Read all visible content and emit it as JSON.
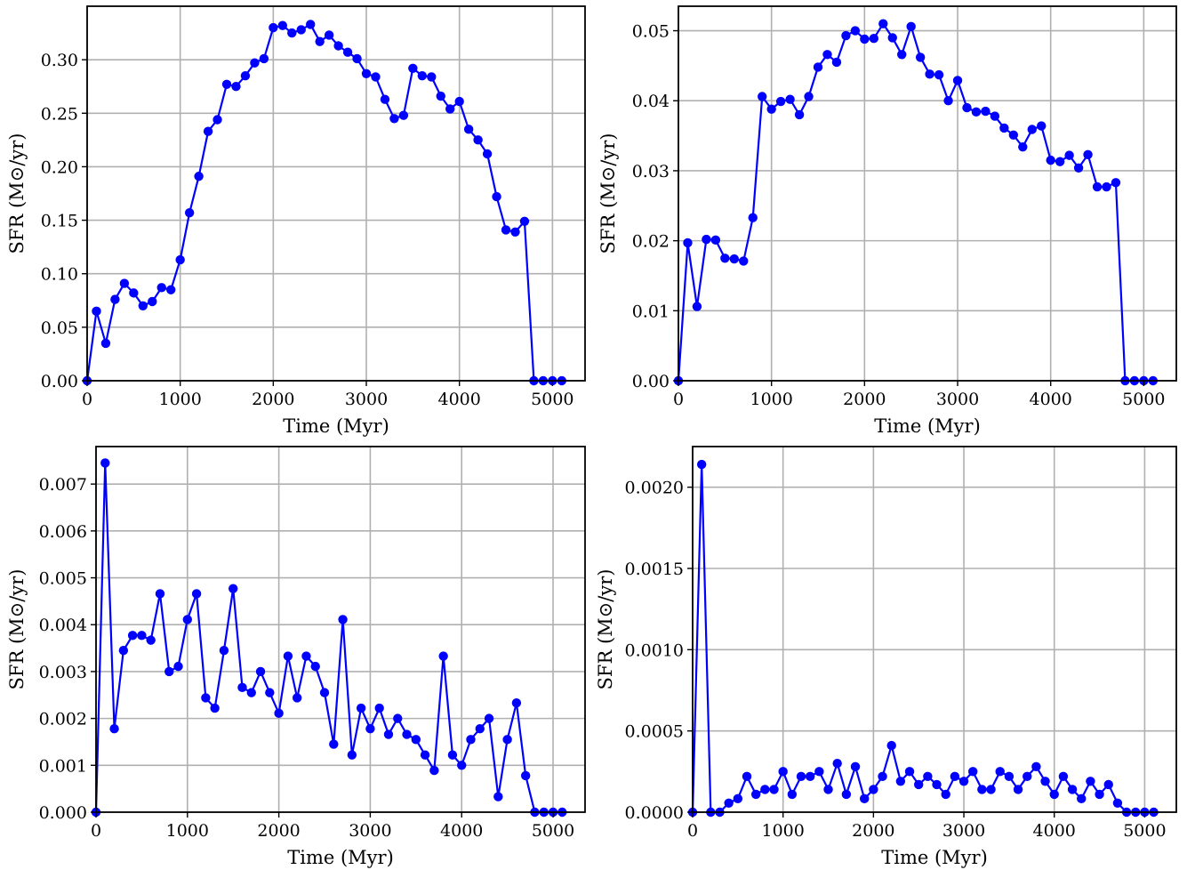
{
  "figure": {
    "background": "#ffffff",
    "series_color": "#0000ff",
    "grid_color": "#b0b0b0"
  },
  "chart_data": [
    {
      "type": "line",
      "panel": "top-left",
      "xlabel": "Time (Myr)",
      "ylabel": "SFR (M⊙/yr)",
      "xlim": [
        0,
        5350
      ],
      "ylim": [
        0,
        0.35
      ],
      "xticks": [
        0,
        1000,
        2000,
        3000,
        4000,
        5000
      ],
      "xtick_labels": [
        "0",
        "1000",
        "2000",
        "3000",
        "4000",
        "5000"
      ],
      "yticks": [
        0,
        0.05,
        0.1,
        0.15,
        0.2,
        0.25,
        0.3
      ],
      "ytick_labels": [
        "0.00",
        "0.05",
        "0.10",
        "0.15",
        "0.20",
        "0.25",
        "0.30"
      ],
      "grid": true,
      "marker": "circle",
      "x": [
        0,
        100,
        200,
        300,
        400,
        500,
        600,
        700,
        800,
        900,
        1000,
        1100,
        1200,
        1300,
        1400,
        1500,
        1600,
        1700,
        1800,
        1900,
        2000,
        2100,
        2200,
        2300,
        2400,
        2500,
        2600,
        2700,
        2800,
        2900,
        3000,
        3100,
        3200,
        3300,
        3400,
        3500,
        3600,
        3700,
        3800,
        3900,
        4000,
        4100,
        4200,
        4300,
        4400,
        4500,
        4600,
        4700,
        4800,
        4900,
        5000,
        5100
      ],
      "y": [
        0.0,
        0.065,
        0.035,
        0.076,
        0.091,
        0.082,
        0.07,
        0.074,
        0.087,
        0.085,
        0.113,
        0.157,
        0.191,
        0.233,
        0.244,
        0.277,
        0.275,
        0.285,
        0.297,
        0.301,
        0.33,
        0.332,
        0.325,
        0.328,
        0.333,
        0.317,
        0.323,
        0.313,
        0.307,
        0.301,
        0.287,
        0.284,
        0.263,
        0.245,
        0.248,
        0.292,
        0.285,
        0.284,
        0.266,
        0.254,
        0.261,
        0.235,
        0.225,
        0.212,
        0.172,
        0.141,
        0.139,
        0.149,
        0.0,
        0.0,
        0.0,
        0.0
      ]
    },
    {
      "type": "line",
      "panel": "top-right",
      "xlabel": "Time (Myr)",
      "ylabel": "SFR (M⊙/yr)",
      "xlim": [
        0,
        5350
      ],
      "ylim": [
        0,
        0.0535
      ],
      "xticks": [
        0,
        1000,
        2000,
        3000,
        4000,
        5000
      ],
      "xtick_labels": [
        "0",
        "1000",
        "2000",
        "3000",
        "4000",
        "5000"
      ],
      "yticks": [
        0,
        0.01,
        0.02,
        0.03,
        0.04,
        0.05
      ],
      "ytick_labels": [
        "0.00",
        "0.01",
        "0.02",
        "0.03",
        "0.04",
        "0.05"
      ],
      "grid": true,
      "marker": "circle",
      "x": [
        0,
        100,
        200,
        300,
        400,
        500,
        600,
        700,
        800,
        900,
        1000,
        1100,
        1200,
        1300,
        1400,
        1500,
        1600,
        1700,
        1800,
        1900,
        2000,
        2100,
        2200,
        2300,
        2400,
        2500,
        2600,
        2700,
        2800,
        2900,
        3000,
        3100,
        3200,
        3300,
        3400,
        3500,
        3600,
        3700,
        3800,
        3900,
        4000,
        4100,
        4200,
        4300,
        4400,
        4500,
        4600,
        4700,
        4800,
        4900,
        5000,
        5100
      ],
      "y": [
        0.0,
        0.0197,
        0.0106,
        0.0202,
        0.0201,
        0.0175,
        0.0174,
        0.0171,
        0.0233,
        0.0406,
        0.0388,
        0.0399,
        0.0402,
        0.038,
        0.0406,
        0.0448,
        0.0466,
        0.0455,
        0.0493,
        0.05,
        0.0488,
        0.0489,
        0.051,
        0.049,
        0.0466,
        0.0506,
        0.0462,
        0.0438,
        0.0437,
        0.04,
        0.0429,
        0.039,
        0.0384,
        0.0385,
        0.0378,
        0.0361,
        0.0351,
        0.0334,
        0.0359,
        0.0364,
        0.0315,
        0.0313,
        0.0322,
        0.0304,
        0.0323,
        0.0277,
        0.0277,
        0.0283,
        0.0,
        0.0,
        0.0,
        0.0
      ]
    },
    {
      "type": "line",
      "panel": "bottom-left",
      "xlabel": "Time (Myr)",
      "ylabel": "SFR (M⊙/yr)",
      "xlim": [
        0,
        5350
      ],
      "ylim": [
        0,
        0.0078
      ],
      "xticks": [
        0,
        1000,
        2000,
        3000,
        4000,
        5000
      ],
      "xtick_labels": [
        "0",
        "1000",
        "2000",
        "3000",
        "4000",
        "5000"
      ],
      "yticks": [
        0,
        0.001,
        0.002,
        0.003,
        0.004,
        0.005,
        0.006,
        0.007
      ],
      "ytick_labels": [
        "0.000",
        "0.001",
        "0.002",
        "0.003",
        "0.004",
        "0.005",
        "0.006",
        "0.007"
      ],
      "grid": true,
      "marker": "circle",
      "x": [
        0,
        100,
        200,
        300,
        400,
        500,
        600,
        700,
        800,
        900,
        1000,
        1100,
        1200,
        1300,
        1400,
        1500,
        1600,
        1700,
        1800,
        1900,
        2000,
        2100,
        2200,
        2300,
        2400,
        2500,
        2600,
        2700,
        2800,
        2900,
        3000,
        3100,
        3200,
        3300,
        3400,
        3500,
        3600,
        3700,
        3800,
        3900,
        4000,
        4100,
        4200,
        4300,
        4400,
        4500,
        4600,
        4700,
        4800,
        4900,
        5000,
        5100
      ],
      "y": [
        0.0,
        0.00745,
        0.00178,
        0.00345,
        0.00377,
        0.00377,
        0.00367,
        0.00466,
        0.003,
        0.00311,
        0.00411,
        0.00466,
        0.00244,
        0.00222,
        0.00345,
        0.00477,
        0.00266,
        0.00255,
        0.003,
        0.00255,
        0.00211,
        0.00333,
        0.00244,
        0.00333,
        0.00311,
        0.00255,
        0.00145,
        0.00411,
        0.00122,
        0.00222,
        0.00178,
        0.00222,
        0.00166,
        0.002,
        0.00166,
        0.00155,
        0.00122,
        0.00089,
        0.00333,
        0.00122,
        0.001,
        0.00155,
        0.00178,
        0.002,
        0.00033,
        0.00155,
        0.00233,
        0.00078,
        0.0,
        0.0,
        0.0,
        0.0
      ]
    },
    {
      "type": "line",
      "panel": "bottom-right",
      "xlabel": "Time (Myr)",
      "ylabel": "SFR (M⊙/yr)",
      "xlim": [
        0,
        5350
      ],
      "ylim": [
        0,
        0.00225
      ],
      "xticks": [
        0,
        1000,
        2000,
        3000,
        4000,
        5000
      ],
      "xtick_labels": [
        "0",
        "1000",
        "2000",
        "3000",
        "4000",
        "5000"
      ],
      "yticks": [
        0,
        0.0005,
        0.001,
        0.0015,
        0.002
      ],
      "ytick_labels": [
        "0.0000",
        "0.0005",
        "0.0010",
        "0.0015",
        "0.0020"
      ],
      "grid": true,
      "marker": "circle",
      "x": [
        0,
        100,
        200,
        300,
        400,
        500,
        600,
        700,
        800,
        900,
        1000,
        1100,
        1200,
        1300,
        1400,
        1500,
        1600,
        1700,
        1800,
        1900,
        2000,
        2100,
        2200,
        2300,
        2400,
        2500,
        2600,
        2700,
        2800,
        2900,
        3000,
        3100,
        3200,
        3300,
        3400,
        3500,
        3600,
        3700,
        3800,
        3900,
        4000,
        4100,
        4200,
        4300,
        4400,
        4500,
        4600,
        4700,
        4800,
        4900,
        5000,
        5100
      ],
      "y": [
        0.0,
        0.00214,
        0.0,
        0.0,
        5.6e-05,
        8.3e-05,
        0.00022,
        0.00011,
        0.00014,
        0.00014,
        0.00025,
        0.00011,
        0.00022,
        0.00022,
        0.00025,
        0.00014,
        0.0003,
        0.00011,
        0.00028,
        8.3e-05,
        0.00014,
        0.00022,
        0.00041,
        0.00019,
        0.00025,
        0.00017,
        0.00022,
        0.00017,
        0.00011,
        0.00022,
        0.00019,
        0.00025,
        0.00014,
        0.00014,
        0.00025,
        0.00022,
        0.00014,
        0.00022,
        0.00028,
        0.00019,
        0.00011,
        0.00022,
        0.00014,
        8.3e-05,
        0.00019,
        0.00011,
        0.00017,
        5.6e-05,
        0.0,
        0.0,
        0.0,
        0.0
      ]
    }
  ]
}
